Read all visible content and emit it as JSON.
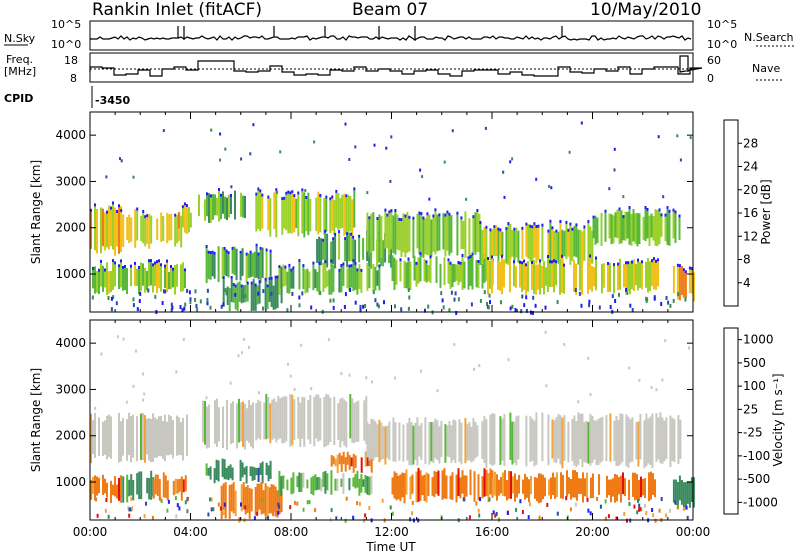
{
  "header": {
    "station": "Rankin Inlet (fitACF)",
    "beam": "Beam 07",
    "date": "10/May/2010"
  },
  "summary": {
    "nsky_label": "N.Sky",
    "nsky_ticks": [
      "10^5",
      "10^0"
    ],
    "nsearch_label": "N.Search",
    "nsearch_ticks": [
      "10^5",
      "10^0"
    ],
    "freq_label_1": "Freq.",
    "freq_label_2": "[MHz]",
    "freq_ticks": [
      "18",
      "8"
    ],
    "nave_label": "Nave",
    "nave_ticks": [
      "60",
      "0"
    ],
    "cpid_label": "CPID",
    "cpid_value": "-3450"
  },
  "colors": {
    "power": [
      "#1e1ef0",
      "#2c4aa8",
      "#3a8b5e",
      "#59b83c",
      "#9bd12a",
      "#f2c01a",
      "#f07a14",
      "#e64a12",
      "#e01010"
    ],
    "velocity": [
      "#e01010",
      "#f07a14",
      "#f2a43a",
      "#c8c8c0",
      "#59b83c",
      "#3a8b5e",
      "#2c4aa8",
      "#1e1ef0"
    ]
  },
  "chart_data": [
    {
      "type": "heatmap",
      "title": "",
      "xlabel": "Time UT",
      "ylabel": "Slant Range [km]",
      "xlim": [
        0,
        24
      ],
      "ylim": [
        180,
        4500
      ],
      "x_ticks": [
        "00:00",
        "04:00",
        "08:00",
        "12:00",
        "16:00",
        "20:00",
        "00:00"
      ],
      "y_ticks": [
        "1000",
        "2000",
        "3000",
        "4000"
      ],
      "y_tick_values": [
        1000,
        2000,
        3000,
        4000
      ],
      "colorbar": {
        "label": "Power [dB]",
        "ticks": [
          "4",
          "8",
          "12",
          "16",
          "20",
          "24",
          "28"
        ],
        "tick_values": [
          4,
          8,
          12,
          16,
          20,
          24,
          28
        ],
        "range": [
          0,
          32
        ]
      },
      "blobs": [
        {
          "t0": 0.0,
          "t1": 1.2,
          "r0": 1500,
          "r1": 2400,
          "v": 19
        },
        {
          "t0": 1.2,
          "t1": 3.6,
          "r0": 1650,
          "r1": 2300,
          "v": 18
        },
        {
          "t0": 0.0,
          "t1": 3.8,
          "r0": 650,
          "r1": 1150,
          "v": 15
        },
        {
          "t0": 3.5,
          "t1": 4.0,
          "r0": 1900,
          "r1": 2400,
          "v": 20
        },
        {
          "t0": 4.3,
          "t1": 6.2,
          "r0": 2200,
          "r1": 2700,
          "v": 12
        },
        {
          "t0": 4.6,
          "t1": 7.2,
          "r0": 900,
          "r1": 1500,
          "v": 11
        },
        {
          "t0": 5.2,
          "t1": 7.6,
          "r0": 300,
          "r1": 800,
          "v": 10
        },
        {
          "t0": 6.5,
          "t1": 10.5,
          "r0": 1900,
          "r1": 2700,
          "v": 16
        },
        {
          "t0": 9.0,
          "t1": 12.0,
          "r0": 1200,
          "r1": 1800,
          "v": 11
        },
        {
          "t0": 7.5,
          "t1": 11.5,
          "r0": 650,
          "r1": 1150,
          "v": 13
        },
        {
          "t0": 11.0,
          "t1": 15.5,
          "r0": 1450,
          "r1": 2250,
          "v": 14
        },
        {
          "t0": 12.0,
          "t1": 16.0,
          "r0": 750,
          "r1": 1300,
          "v": 14
        },
        {
          "t0": 15.5,
          "t1": 20.0,
          "r0": 1300,
          "r1": 2000,
          "v": 15
        },
        {
          "t0": 15.8,
          "t1": 22.6,
          "r0": 650,
          "r1": 1250,
          "v": 18
        },
        {
          "t0": 20.0,
          "t1": 23.5,
          "r0": 1700,
          "r1": 2300,
          "v": 14
        },
        {
          "t0": 23.2,
          "t1": 24.0,
          "r0": 500,
          "r1": 1100,
          "v": 22
        }
      ]
    },
    {
      "type": "heatmap",
      "title": "",
      "xlabel": "Time UT",
      "ylabel": "Slant Range [km]",
      "xlim": [
        0,
        24
      ],
      "ylim": [
        180,
        4500
      ],
      "x_ticks": [
        "00:00",
        "04:00",
        "08:00",
        "12:00",
        "16:00",
        "20:00",
        "00:00"
      ],
      "y_ticks": [
        "1000",
        "2000",
        "3000",
        "4000"
      ],
      "y_tick_values": [
        1000,
        2000,
        3000,
        4000
      ],
      "colorbar": {
        "label": "Velocity [m s⁻¹]",
        "ticks": [
          "1000",
          "500",
          "100",
          "25",
          "-25",
          "-100",
          "-500",
          "-1000"
        ]
      },
      "blobs": [
        {
          "t0": 0.0,
          "t1": 4.0,
          "r0": 1500,
          "r1": 2400,
          "v": 3
        },
        {
          "t0": 0.0,
          "t1": 1.2,
          "r0": 650,
          "r1": 1050,
          "v": 1
        },
        {
          "t0": 1.2,
          "t1": 2.5,
          "r0": 650,
          "r1": 1150,
          "v": 5
        },
        {
          "t0": 2.5,
          "t1": 3.8,
          "r0": 700,
          "r1": 1100,
          "v": 1
        },
        {
          "t0": 4.3,
          "t1": 6.5,
          "r0": 1800,
          "r1": 2700,
          "v": 3
        },
        {
          "t0": 4.6,
          "t1": 7.2,
          "r0": 1050,
          "r1": 1400,
          "v": 5
        },
        {
          "t0": 5.2,
          "t1": 7.6,
          "r0": 300,
          "r1": 900,
          "v": 1
        },
        {
          "t0": 6.5,
          "t1": 11.0,
          "r0": 1850,
          "r1": 2800,
          "v": 3
        },
        {
          "t0": 7.5,
          "t1": 11.2,
          "r0": 800,
          "r1": 1150,
          "v": 4
        },
        {
          "t0": 9.5,
          "t1": 11.2,
          "r0": 1300,
          "r1": 1600,
          "v": 1
        },
        {
          "t0": 11.0,
          "t1": 15.5,
          "r0": 1450,
          "r1": 2300,
          "v": 3
        },
        {
          "t0": 12.0,
          "t1": 16.0,
          "r0": 650,
          "r1": 1200,
          "v": 1
        },
        {
          "t0": 15.5,
          "t1": 23.5,
          "r0": 1400,
          "r1": 2400,
          "v": 3
        },
        {
          "t0": 16.0,
          "t1": 22.5,
          "r0": 650,
          "r1": 1150,
          "v": 1
        },
        {
          "t0": 23.2,
          "t1": 24.0,
          "r0": 500,
          "r1": 1100,
          "v": 5
        }
      ]
    }
  ]
}
